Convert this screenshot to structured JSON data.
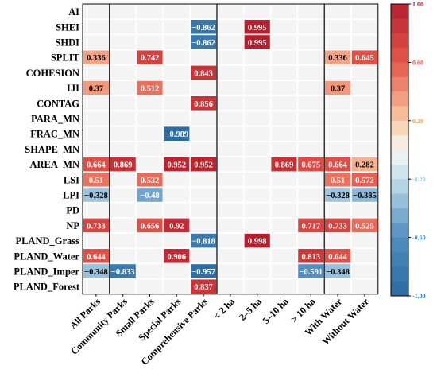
{
  "chart_data": {
    "type": "heatmap",
    "rows": [
      "AI",
      "SHEI",
      "SHDI",
      "SPLIT",
      "COHESION",
      "IJI",
      "CONTAG",
      "PARA_MN",
      "FRAC_MN",
      "SHAPE_MN",
      "AREA_MN",
      "LSI",
      "LPI",
      "PD",
      "NP",
      "PLAND_Grass",
      "PLAND_Water",
      "PLAND_Imper",
      "PLAND_Forest"
    ],
    "columns": [
      "All Parks",
      "Community Parks",
      "Small Parks",
      "Special Parks",
      "Comprehensive Parks",
      "< 2 ha",
      "2–5 ha",
      "5–10 ha",
      "> 10 ha",
      "With Water",
      "Without Water"
    ],
    "cells": [
      {
        "row": 1,
        "col": 4,
        "value": -0.862,
        "label": "−0.862"
      },
      {
        "row": 1,
        "col": 6,
        "value": 0.995,
        "label": "0.995"
      },
      {
        "row": 2,
        "col": 4,
        "value": -0.862,
        "label": "−0.862"
      },
      {
        "row": 2,
        "col": 6,
        "value": 0.995,
        "label": "0.995"
      },
      {
        "row": 3,
        "col": 0,
        "value": 0.336,
        "label": "0.336"
      },
      {
        "row": 3,
        "col": 2,
        "value": 0.742,
        "label": "0.742"
      },
      {
        "row": 3,
        "col": 9,
        "value": 0.336,
        "label": "0.336"
      },
      {
        "row": 3,
        "col": 10,
        "value": 0.645,
        "label": "0.645"
      },
      {
        "row": 4,
        "col": 4,
        "value": 0.843,
        "label": "0.843"
      },
      {
        "row": 5,
        "col": 0,
        "value": 0.37,
        "label": "0.37"
      },
      {
        "row": 5,
        "col": 2,
        "value": 0.512,
        "label": "0.512"
      },
      {
        "row": 5,
        "col": 9,
        "value": 0.37,
        "label": "0.37"
      },
      {
        "row": 6,
        "col": 4,
        "value": 0.856,
        "label": "0.856"
      },
      {
        "row": 8,
        "col": 3,
        "value": -0.989,
        "label": "−0.989"
      },
      {
        "row": 10,
        "col": 0,
        "value": 0.664,
        "label": "0.664"
      },
      {
        "row": 10,
        "col": 1,
        "value": 0.869,
        "label": "0.869"
      },
      {
        "row": 10,
        "col": 3,
        "value": 0.952,
        "label": "0.952"
      },
      {
        "row": 10,
        "col": 4,
        "value": 0.952,
        "label": "0.952"
      },
      {
        "row": 10,
        "col": 7,
        "value": 0.869,
        "label": "0.869"
      },
      {
        "row": 10,
        "col": 8,
        "value": 0.675,
        "label": "0.675"
      },
      {
        "row": 10,
        "col": 9,
        "value": 0.664,
        "label": "0.664"
      },
      {
        "row": 10,
        "col": 10,
        "value": 0.282,
        "label": "0.282"
      },
      {
        "row": 11,
        "col": 0,
        "value": 0.51,
        "label": "0.51"
      },
      {
        "row": 11,
        "col": 2,
        "value": 0.532,
        "label": "0.532"
      },
      {
        "row": 11,
        "col": 9,
        "value": 0.51,
        "label": "0.51"
      },
      {
        "row": 11,
        "col": 10,
        "value": 0.572,
        "label": "0.572"
      },
      {
        "row": 12,
        "col": 0,
        "value": -0.328,
        "label": "−0.328"
      },
      {
        "row": 12,
        "col": 2,
        "value": -0.48,
        "label": "−0.48"
      },
      {
        "row": 12,
        "col": 9,
        "value": -0.328,
        "label": "−0.328"
      },
      {
        "row": 12,
        "col": 10,
        "value": -0.385,
        "label": "−0.385"
      },
      {
        "row": 14,
        "col": 0,
        "value": 0.733,
        "label": "0.733"
      },
      {
        "row": 14,
        "col": 2,
        "value": 0.656,
        "label": "0.656"
      },
      {
        "row": 14,
        "col": 3,
        "value": 0.92,
        "label": "0.92"
      },
      {
        "row": 14,
        "col": 8,
        "value": 0.717,
        "label": "0.717"
      },
      {
        "row": 14,
        "col": 9,
        "value": 0.733,
        "label": "0.733"
      },
      {
        "row": 14,
        "col": 10,
        "value": 0.525,
        "label": "0.525"
      },
      {
        "row": 15,
        "col": 4,
        "value": -0.818,
        "label": "−0.818"
      },
      {
        "row": 15,
        "col": 6,
        "value": 0.998,
        "label": "0.998"
      },
      {
        "row": 16,
        "col": 0,
        "value": 0.644,
        "label": "0.644"
      },
      {
        "row": 16,
        "col": 3,
        "value": 0.906,
        "label": "0.906"
      },
      {
        "row": 16,
        "col": 8,
        "value": 0.813,
        "label": "0.813"
      },
      {
        "row": 16,
        "col": 9,
        "value": 0.644,
        "label": "0.644"
      },
      {
        "row": 17,
        "col": 0,
        "value": -0.348,
        "label": "−0.348"
      },
      {
        "row": 17,
        "col": 1,
        "value": -0.833,
        "label": "−0.833"
      },
      {
        "row": 17,
        "col": 4,
        "value": -0.957,
        "label": "−0.957"
      },
      {
        "row": 17,
        "col": 8,
        "value": -0.591,
        "label": "−0.591"
      },
      {
        "row": 17,
        "col": 9,
        "value": -0.348,
        "label": "−0.348"
      },
      {
        "row": 18,
        "col": 4,
        "value": 0.837,
        "label": "0.837"
      }
    ],
    "group_separators_after_columns": [
      0,
      4,
      8
    ],
    "colorbar": {
      "range": [
        -1,
        1
      ],
      "ticks": [
        {
          "value": 1,
          "label": "1.00"
        },
        {
          "value": 0.6,
          "label": "0.60"
        },
        {
          "value": 0.2,
          "label": "0.20"
        },
        {
          "value": -0.2,
          "label": "-0.20"
        },
        {
          "value": -0.6,
          "label": "-0.60"
        },
        {
          "value": -1,
          "label": "-1.00"
        }
      ]
    },
    "colors": {
      "empty_cell": "#f4f4f4",
      "grid": "#ffffff",
      "negative_strong": "#2c6aa2",
      "neutral": "#f6f7f5",
      "positive_strong": "#b51f2e"
    }
  }
}
